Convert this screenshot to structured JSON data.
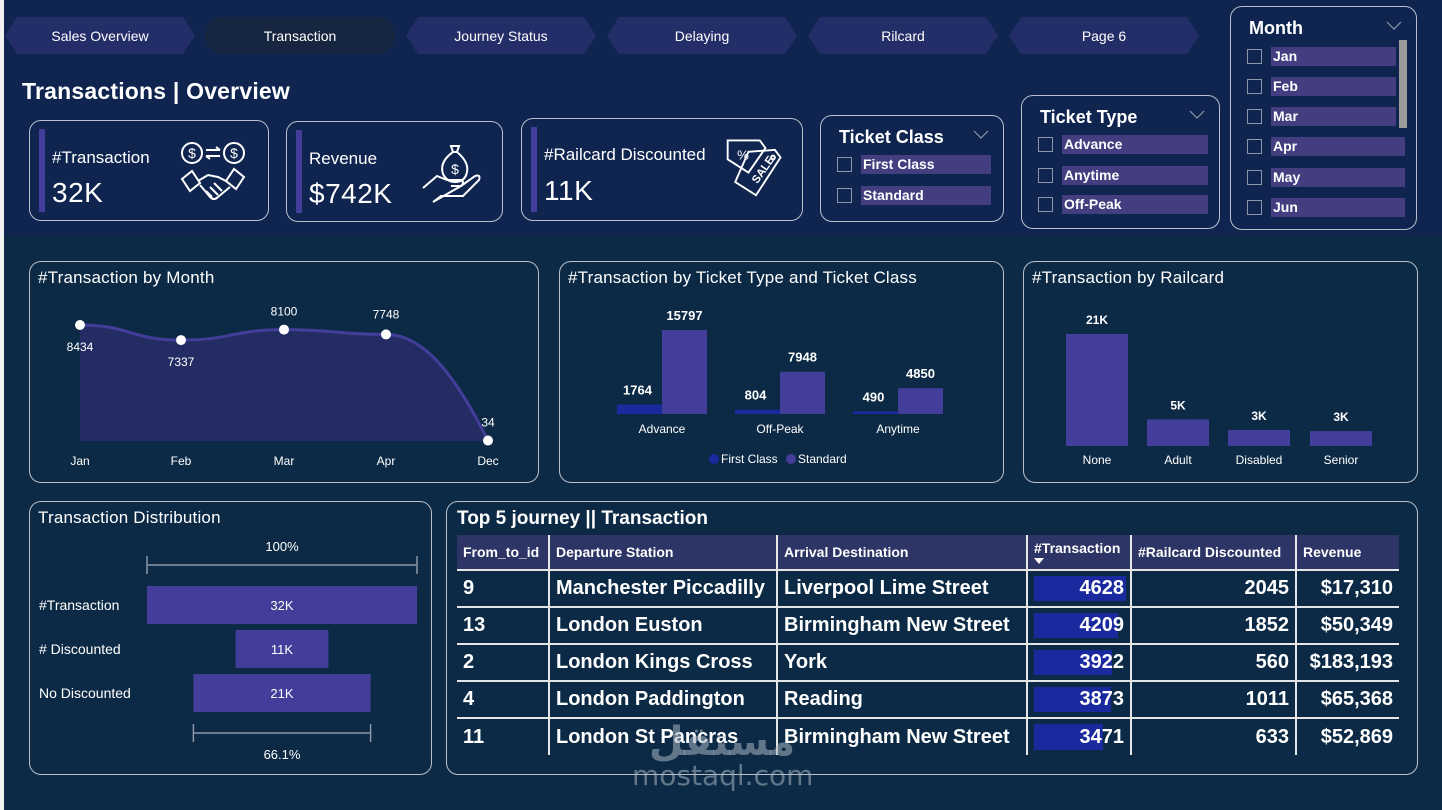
{
  "nav": {
    "tabs": [
      {
        "label": "Sales Overview",
        "active": false
      },
      {
        "label": "Transaction",
        "active": true
      },
      {
        "label": "Journey Status",
        "active": false
      },
      {
        "label": "Delaying",
        "active": false
      },
      {
        "label": "Rilcard",
        "active": false
      },
      {
        "label": "Page 6",
        "active": false
      }
    ]
  },
  "header": {
    "title": "Transactions | Overview"
  },
  "kpis": [
    {
      "label": "#Transaction",
      "value": "32K",
      "icon": "handshake-money-exchange-icon"
    },
    {
      "label": "Revenue",
      "value": "$742K",
      "icon": "money-bag-hand-icon"
    },
    {
      "label": "#Railcard Discounted",
      "value": "11K",
      "icon": "sale-tag-icon"
    }
  ],
  "slicers": {
    "ticket_class": {
      "title": "Ticket Class",
      "items": [
        "First Class",
        "Standard"
      ]
    },
    "ticket_type": {
      "title": "Ticket Type",
      "items": [
        "Advance",
        "Anytime",
        "Off-Peak"
      ]
    },
    "month": {
      "title": "Month",
      "items": [
        "Jan",
        "Feb",
        "Mar",
        "Apr",
        "May",
        "Jun"
      ]
    }
  },
  "colors": {
    "primary_bar": "#433e99",
    "first_class": "#1a2a9e",
    "background_top": "#0f2550",
    "background": "#0c2a45",
    "area_fill": "#232d64"
  },
  "chart_data": [
    {
      "id": "by_month",
      "type": "area",
      "title": "#Transaction by Month",
      "categories": [
        "Jan",
        "Feb",
        "Mar",
        "Apr",
        "Dec"
      ],
      "values": [
        8434,
        7337,
        8100,
        7748,
        34
      ],
      "xlabel": "",
      "ylabel": "",
      "ylim": [
        0,
        8434
      ],
      "grid": false,
      "data_labels": true
    },
    {
      "id": "by_ticket",
      "type": "bar",
      "title": "#Transaction by Ticket Type and Ticket Class",
      "categories": [
        "Advance",
        "Off-Peak",
        "Anytime"
      ],
      "series": [
        {
          "name": "First Class",
          "values": [
            1764,
            804,
            490
          ]
        },
        {
          "name": "Standard",
          "values": [
            15797,
            7948,
            4850
          ]
        }
      ],
      "legend": "bottom-center",
      "grid": false,
      "ylim": [
        0,
        15797
      ]
    },
    {
      "id": "by_railcard",
      "type": "bar",
      "title": "#Transaction by Railcard",
      "categories": [
        "None",
        "Adult",
        "Disabled",
        "Senior"
      ],
      "values": [
        21000,
        5000,
        3000,
        2800
      ],
      "value_labels": [
        "21K",
        "5K",
        "3K",
        "3K"
      ],
      "grid": false,
      "ylim": [
        0,
        21000
      ]
    },
    {
      "id": "distribution",
      "type": "bar",
      "title": "Transaction Distribution",
      "categories": [
        "#Transaction",
        "# Discounted",
        "No Discounted"
      ],
      "values": [
        32000,
        11000,
        21000
      ],
      "value_labels": [
        "32K",
        "11K",
        "21K"
      ],
      "top_annotation": "100%",
      "bottom_annotation": "66.1%"
    }
  ],
  "table": {
    "title": "Top 5 journey || Transaction",
    "columns": [
      "From_to_id",
      "Departure Station",
      "Arrival Destination",
      "#Transaction",
      "#Railcard Discounted",
      "Revenue"
    ],
    "sort_column": "#Transaction",
    "rows": [
      {
        "id": "9",
        "departure": "Manchester Piccadilly",
        "arrival": "Liverpool Lime Street",
        "transactions": 4628,
        "discounted": "2045",
        "revenue": "$17,310"
      },
      {
        "id": "13",
        "departure": "London Euston",
        "arrival": "Birmingham New Street",
        "transactions": 4209,
        "discounted": "1852",
        "revenue": "$50,349"
      },
      {
        "id": "2",
        "departure": "London Kings Cross",
        "arrival": "York",
        "transactions": 3922,
        "discounted": "560",
        "revenue": "$183,193"
      },
      {
        "id": "4",
        "departure": "London Paddington",
        "arrival": "Reading",
        "transactions": 3873,
        "discounted": "1011",
        "revenue": "$65,368"
      },
      {
        "id": "11",
        "departure": "London St Pancras",
        "arrival": "Birmingham New Street",
        "transactions": 3471,
        "discounted": "633",
        "revenue": "$52,869"
      }
    ]
  },
  "watermark": {
    "arabic": "مستقل",
    "latin": "mostaql.com"
  }
}
